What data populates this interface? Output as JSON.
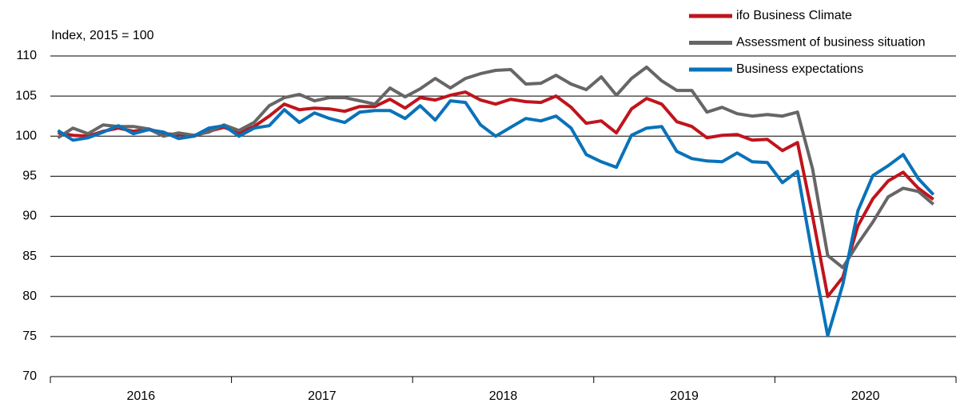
{
  "chart_data": {
    "type": "line",
    "y_axis_label": "Index, 2015 = 100",
    "categories": [
      null,
      null,
      null,
      null,
      null,
      "2016",
      null,
      null,
      null,
      null,
      null,
      null,
      null,
      null,
      null,
      null,
      null,
      "2017",
      null,
      null,
      null,
      null,
      null,
      null,
      null,
      null,
      null,
      null,
      null,
      "2018",
      null,
      null,
      null,
      null,
      null,
      null,
      null,
      null,
      null,
      null,
      null,
      "2019",
      null,
      null,
      null,
      null,
      null,
      null,
      null,
      null,
      null,
      null,
      null,
      "2020",
      null,
      null,
      null,
      null,
      null
    ],
    "series": [
      {
        "name": "ifo Business Climate",
        "color": "#c0141c",
        "values": [
          100.4,
          100.1,
          100.0,
          100.6,
          101.0,
          100.6,
          100.9,
          100.3,
          100.2,
          100.0,
          100.6,
          101.1,
          100.4,
          101.2,
          102.5,
          104.0,
          103.3,
          103.5,
          103.4,
          103.1,
          103.7,
          103.7,
          104.6,
          103.5,
          104.8,
          104.5,
          105.1,
          105.5,
          104.5,
          104.0,
          104.6,
          104.3,
          104.2,
          105.0,
          103.6,
          101.6,
          101.9,
          100.4,
          103.4,
          104.7,
          104.0,
          101.8,
          101.2,
          99.8,
          100.1,
          100.2,
          99.5,
          99.6,
          98.2,
          99.2,
          90.0,
          80.0,
          82.4,
          88.8,
          92.2,
          94.4,
          95.5,
          93.5,
          92.1
        ]
      },
      {
        "name": "Assessment of business situation",
        "color": "#666666",
        "values": [
          99.8,
          101.0,
          100.3,
          101.4,
          101.2,
          101.2,
          100.9,
          100.0,
          100.4,
          100.1,
          100.5,
          101.4,
          100.7,
          101.7,
          103.8,
          104.8,
          105.2,
          104.4,
          104.8,
          104.8,
          104.4,
          104.0,
          106.0,
          104.9,
          105.9,
          107.2,
          106.0,
          107.2,
          107.8,
          108.2,
          108.3,
          106.5,
          106.6,
          107.6,
          106.5,
          105.8,
          107.4,
          105.1,
          107.2,
          108.6,
          106.9,
          105.7,
          105.7,
          103.0,
          103.6,
          102.8,
          102.5,
          102.7,
          102.5,
          103.0,
          95.9,
          85.1,
          83.6,
          86.6,
          89.3,
          92.4,
          93.5,
          93.1,
          91.5
        ]
      },
      {
        "name": "Business expectations",
        "color": "#0a72b9",
        "values": [
          100.7,
          99.5,
          99.8,
          100.5,
          101.3,
          100.3,
          100.8,
          100.5,
          99.7,
          100.0,
          101.0,
          101.3,
          100.0,
          101.0,
          101.3,
          103.3,
          101.7,
          102.9,
          102.2,
          101.7,
          103.0,
          103.2,
          103.2,
          102.2,
          103.8,
          102.0,
          104.4,
          104.2,
          101.4,
          100.0,
          101.1,
          102.2,
          101.9,
          102.5,
          101.0,
          97.7,
          96.8,
          96.1,
          100.1,
          101.0,
          101.2,
          98.1,
          97.2,
          96.9,
          96.8,
          97.9,
          96.8,
          96.7,
          94.2,
          95.6,
          85.0,
          75.1,
          81.5,
          90.7,
          95.1,
          96.3,
          97.7,
          94.7,
          92.7
        ]
      }
    ],
    "ylim": [
      70,
      110
    ],
    "yticks": [
      70,
      75,
      80,
      85,
      90,
      95,
      100,
      105,
      110
    ],
    "grid": true,
    "legend": "top-right"
  }
}
